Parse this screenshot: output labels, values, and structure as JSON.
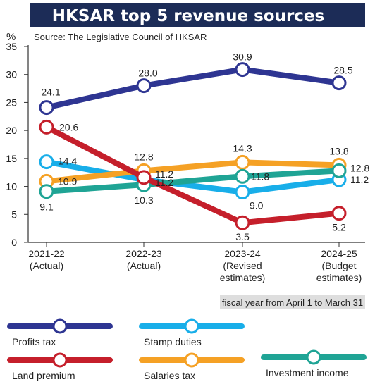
{
  "chart_data": {
    "type": "line",
    "title": "HKSAR top 5 revenue sources",
    "subtitle": "Source: The Legislative Council of HKSAR",
    "ylabel": "%",
    "ylim": [
      0,
      35
    ],
    "yticks": [
      0,
      5,
      10,
      15,
      20,
      25,
      30,
      35
    ],
    "categories": [
      [
        "2021-22",
        "(Actual)"
      ],
      [
        "2022-23",
        "(Actual)"
      ],
      [
        "2023-24",
        "(Revised",
        "estimates)"
      ],
      [
        "2024-25",
        "(Budget",
        "estimates)"
      ]
    ],
    "note": "fiscal year from April 1 to March 31",
    "grid": false,
    "legend_position": "bottom",
    "series": [
      {
        "name": "Profits tax",
        "color": "#2e3592",
        "values": [
          24.1,
          28.0,
          30.9,
          28.5
        ],
        "labels": [
          "24.1",
          "28.0",
          "30.9",
          "28.5"
        ]
      },
      {
        "name": "Land premium",
        "color": "#c51f2b",
        "values": [
          20.6,
          11.6,
          3.5,
          5.2
        ],
        "labels": [
          "20.6",
          "",
          "3.5",
          "5.2"
        ]
      },
      {
        "name": "Stamp duties",
        "color": "#18aee9",
        "values": [
          14.4,
          11.2,
          9.0,
          11.2
        ],
        "labels": [
          "14.4",
          "11.2",
          "9.0",
          "11.2"
        ]
      },
      {
        "name": "Salaries tax",
        "color": "#f5a125",
        "values": [
          10.9,
          12.8,
          14.3,
          13.8
        ],
        "labels": [
          "10.9",
          "12.8",
          "14.3",
          "13.8"
        ]
      },
      {
        "name": "Investment income",
        "color": "#1fa495",
        "values": [
          9.1,
          10.3,
          11.8,
          12.8
        ],
        "labels": [
          "9.1",
          "10.3",
          "11.8",
          "12.8"
        ]
      }
    ],
    "extra_labels": [
      {
        "text": "11.2",
        "category": 1,
        "value": 11.2
      }
    ]
  }
}
